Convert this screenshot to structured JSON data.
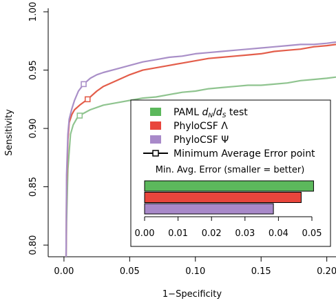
{
  "chart_data": {
    "type": "line",
    "title": "",
    "xlabel": "1−Specificity",
    "ylabel": "Sensitivity",
    "xlim": [
      -0.012,
      0.207
    ],
    "ylim": [
      0.79,
      1.003
    ],
    "xticks": [
      "0.00",
      "0.05",
      "0.10",
      "0.15",
      "0.20"
    ],
    "xtick_values": [
      0,
      0.05,
      0.1,
      0.15,
      0.2
    ],
    "yticks": [
      "0.80",
      "0.85",
      "0.90",
      "0.95",
      "1.00"
    ],
    "ytick_values": [
      0.8,
      0.85,
      0.9,
      0.95,
      1.0
    ],
    "grid": false,
    "legend_position": "lower-right",
    "series": [
      {
        "name": "PAML d_N/d_S test",
        "legend_prefix": "PAML ",
        "legend_math": "d",
        "legend_sub1": "N",
        "legend_slash": "/",
        "legend_math2": "d",
        "legend_sub2": "S",
        "legend_suffix": " test",
        "color": "#8fc48f",
        "swatch_color": "#5cb85c",
        "points": [
          [
            0.0016,
            0.79
          ],
          [
            0.002,
            0.82
          ],
          [
            0.003,
            0.865
          ],
          [
            0.004,
            0.88
          ],
          [
            0.005,
            0.895
          ],
          [
            0.007,
            0.903
          ],
          [
            0.01,
            0.909
          ],
          [
            0.012,
            0.911
          ],
          [
            0.015,
            0.913
          ],
          [
            0.02,
            0.916
          ],
          [
            0.03,
            0.92
          ],
          [
            0.04,
            0.922
          ],
          [
            0.05,
            0.924
          ],
          [
            0.06,
            0.926
          ],
          [
            0.07,
            0.927
          ],
          [
            0.08,
            0.929
          ],
          [
            0.09,
            0.931
          ],
          [
            0.1,
            0.932
          ],
          [
            0.11,
            0.934
          ],
          [
            0.12,
            0.935
          ],
          [
            0.13,
            0.936
          ],
          [
            0.14,
            0.937
          ],
          [
            0.15,
            0.937
          ],
          [
            0.16,
            0.938
          ],
          [
            0.17,
            0.939
          ],
          [
            0.18,
            0.941
          ],
          [
            0.19,
            0.942
          ],
          [
            0.2,
            0.943
          ],
          [
            0.207,
            0.944
          ]
        ],
        "min_error_point": [
          0.012,
          0.911
        ]
      },
      {
        "name": "PhyloCSF Λ",
        "color": "#e35d4a",
        "swatch_color": "#e8453c",
        "points": [
          [
            0.0016,
            0.79
          ],
          [
            0.002,
            0.85
          ],
          [
            0.003,
            0.89
          ],
          [
            0.004,
            0.905
          ],
          [
            0.006,
            0.912
          ],
          [
            0.008,
            0.916
          ],
          [
            0.012,
            0.92
          ],
          [
            0.018,
            0.925
          ],
          [
            0.025,
            0.932
          ],
          [
            0.03,
            0.936
          ],
          [
            0.04,
            0.941
          ],
          [
            0.05,
            0.946
          ],
          [
            0.06,
            0.95
          ],
          [
            0.07,
            0.952
          ],
          [
            0.08,
            0.954
          ],
          [
            0.09,
            0.956
          ],
          [
            0.1,
            0.958
          ],
          [
            0.11,
            0.96
          ],
          [
            0.12,
            0.961
          ],
          [
            0.13,
            0.962
          ],
          [
            0.14,
            0.963
          ],
          [
            0.15,
            0.964
          ],
          [
            0.16,
            0.966
          ],
          [
            0.17,
            0.967
          ],
          [
            0.18,
            0.968
          ],
          [
            0.19,
            0.97
          ],
          [
            0.2,
            0.971
          ],
          [
            0.207,
            0.972
          ]
        ],
        "min_error_point": [
          0.018,
          0.925
        ]
      },
      {
        "name": "PhyloCSF Ψ",
        "color": "#a98fc8",
        "swatch_color": "#a889c9",
        "points": [
          [
            0.0016,
            0.79
          ],
          [
            0.002,
            0.86
          ],
          [
            0.003,
            0.895
          ],
          [
            0.004,
            0.908
          ],
          [
            0.006,
            0.917
          ],
          [
            0.008,
            0.924
          ],
          [
            0.011,
            0.932
          ],
          [
            0.015,
            0.938
          ],
          [
            0.02,
            0.943
          ],
          [
            0.025,
            0.946
          ],
          [
            0.03,
            0.948
          ],
          [
            0.04,
            0.951
          ],
          [
            0.05,
            0.954
          ],
          [
            0.06,
            0.957
          ],
          [
            0.07,
            0.959
          ],
          [
            0.08,
            0.961
          ],
          [
            0.09,
            0.962
          ],
          [
            0.1,
            0.964
          ],
          [
            0.11,
            0.965
          ],
          [
            0.12,
            0.966
          ],
          [
            0.13,
            0.967
          ],
          [
            0.14,
            0.968
          ],
          [
            0.15,
            0.969
          ],
          [
            0.16,
            0.97
          ],
          [
            0.17,
            0.971
          ],
          [
            0.18,
            0.972
          ],
          [
            0.19,
            0.972
          ],
          [
            0.2,
            0.973
          ],
          [
            0.207,
            0.974
          ]
        ],
        "min_error_point": [
          0.015,
          0.938
        ]
      }
    ],
    "min_error_legend": "Minimum Average Error point",
    "inset": {
      "title": "Min. Avg. Error (smaller = better)",
      "xlim": [
        0,
        0.05
      ],
      "xticks": [
        "0.00",
        "0.01",
        "0.02",
        "0.03",
        "0.04",
        "0.05"
      ],
      "xtick_values": [
        0,
        0.01,
        0.02,
        0.03,
        0.04,
        0.05
      ],
      "bars": [
        {
          "series": "PAML d_N/d_S test",
          "value": 0.0505,
          "color": "#5cb85c"
        },
        {
          "series": "PhyloCSF Λ",
          "value": 0.0468,
          "color": "#e8453c"
        },
        {
          "series": "PhyloCSF Ψ",
          "value": 0.0385,
          "color": "#a889c9"
        }
      ]
    }
  }
}
